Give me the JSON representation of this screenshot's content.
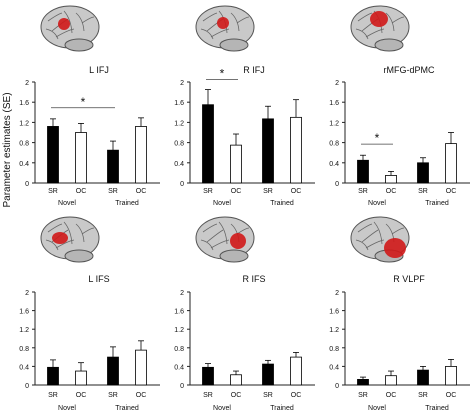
{
  "figure": {
    "ylabel": "Parameter estimates (SE)",
    "colors": {
      "filled": "#000000",
      "open": "#ffffff",
      "axis": "#222222",
      "activation": "#d01818",
      "brain": "#c9c9c9"
    }
  },
  "chart_data": [
    {
      "type": "bar",
      "title": "L IFJ",
      "categories": [
        "SR",
        "OC",
        "SR",
        "OC"
      ],
      "groups": [
        "Novel",
        "Trained"
      ],
      "values": [
        1.12,
        1.0,
        0.65,
        1.12
      ],
      "errors": [
        0.15,
        0.18,
        0.18,
        0.17
      ],
      "fills": [
        "filled",
        "open",
        "filled",
        "open"
      ],
      "ylim": [
        0,
        2
      ],
      "yticks": [
        "0",
        "0.4",
        "0.8",
        "1.2",
        "1.6",
        "2"
      ],
      "significance": {
        "from": 0,
        "to": 2,
        "label": "*"
      }
    },
    {
      "type": "bar",
      "title": "R IFJ",
      "categories": [
        "SR",
        "OC",
        "SR",
        "OC"
      ],
      "groups": [
        "Novel",
        "Trained"
      ],
      "values": [
        1.55,
        0.75,
        1.27,
        1.3
      ],
      "errors": [
        0.3,
        0.22,
        0.25,
        0.35
      ],
      "fills": [
        "filled",
        "open",
        "filled",
        "open"
      ],
      "ylim": [
        0,
        2
      ],
      "yticks": [
        "0",
        "0.4",
        "0.8",
        "1.2",
        "1.6",
        "2"
      ],
      "significance": {
        "from": 0,
        "to": 1,
        "label": "*"
      }
    },
    {
      "type": "bar",
      "title": "rMFG-dPMC",
      "categories": [
        "SR",
        "OC",
        "SR",
        "OC"
      ],
      "groups": [
        "Novel",
        "Trained"
      ],
      "values": [
        0.45,
        0.15,
        0.4,
        0.78
      ],
      "errors": [
        0.1,
        0.08,
        0.1,
        0.22
      ],
      "fills": [
        "filled",
        "open",
        "filled",
        "open"
      ],
      "ylim": [
        0,
        2
      ],
      "yticks": [
        "0",
        "0.4",
        "0.8",
        "1.2",
        "1.6",
        "2"
      ],
      "significance": {
        "from": 0,
        "to": 1,
        "label": "*"
      }
    },
    {
      "type": "bar",
      "title": "L IFS",
      "categories": [
        "SR",
        "OC",
        "SR",
        "OC"
      ],
      "groups": [
        "Novel",
        "Trained"
      ],
      "values": [
        0.38,
        0.3,
        0.6,
        0.75
      ],
      "errors": [
        0.16,
        0.18,
        0.22,
        0.2
      ],
      "fills": [
        "filled",
        "open",
        "filled",
        "open"
      ],
      "ylim": [
        0,
        2
      ],
      "yticks": [
        "0",
        "0.4",
        "0.8",
        "1.2",
        "1.6",
        "2"
      ]
    },
    {
      "type": "bar",
      "title": "R IFS",
      "categories": [
        "SR",
        "OC",
        "SR",
        "OC"
      ],
      "groups": [
        "Novel",
        "Trained"
      ],
      "values": [
        0.38,
        0.22,
        0.45,
        0.6
      ],
      "errors": [
        0.08,
        0.08,
        0.08,
        0.1
      ],
      "fills": [
        "filled",
        "open",
        "filled",
        "open"
      ],
      "ylim": [
        0,
        2
      ],
      "yticks": [
        "0",
        "0.4",
        "0.8",
        "1.2",
        "1.6",
        "2"
      ]
    },
    {
      "type": "bar",
      "title": "R VLPF",
      "categories": [
        "SR",
        "OC",
        "SR",
        "OC"
      ],
      "groups": [
        "Novel",
        "Trained"
      ],
      "values": [
        0.12,
        0.2,
        0.32,
        0.4
      ],
      "errors": [
        0.05,
        0.1,
        0.08,
        0.15
      ],
      "fills": [
        "filled",
        "open",
        "filled",
        "open"
      ],
      "ylim": [
        0,
        2
      ],
      "yticks": [
        "0",
        "0.4",
        "0.8",
        "1.2",
        "1.6",
        "2"
      ]
    }
  ]
}
